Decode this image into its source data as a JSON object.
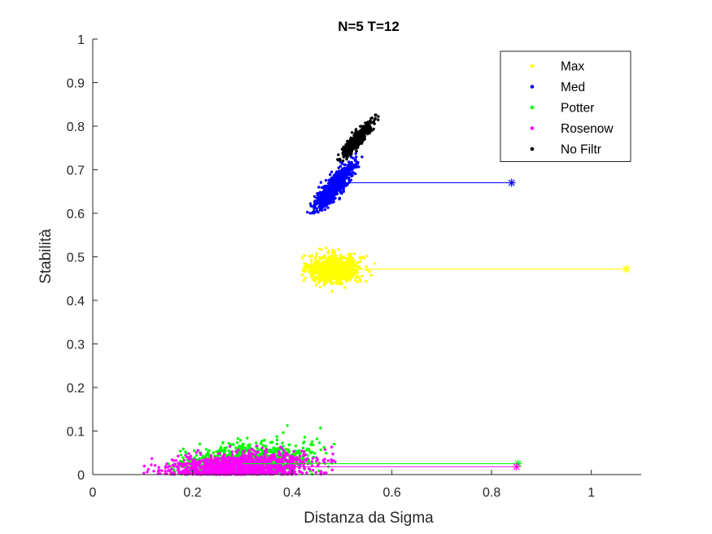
{
  "chart_data": {
    "type": "scatter",
    "title": "N=5    T=12",
    "xlabel": "Distanza da Sigma",
    "ylabel": "Stabilità",
    "xlim": [
      0,
      1.1
    ],
    "ylim": [
      0,
      1
    ],
    "xticks": [
      0,
      0.2,
      0.4,
      0.6,
      0.8,
      1
    ],
    "xtick_labels": [
      "0",
      "0.2",
      "0.4",
      "0.6",
      "0.8",
      "1"
    ],
    "yticks": [
      0,
      0.1,
      0.2,
      0.3,
      0.4,
      0.5,
      0.6,
      0.7,
      0.8,
      0.9,
      1
    ],
    "ytick_labels": [
      "0",
      "0.1",
      "0.2",
      "0.3",
      "0.4",
      "0.5",
      "0.6",
      "0.7",
      "0.8",
      "0.9",
      "1"
    ],
    "grid": false,
    "legend_position": "top-right",
    "series": [
      {
        "name": "Max",
        "color": "#ffff00",
        "cloud": {
          "x_mean": 0.485,
          "x_sd": 0.025,
          "y_mean": 0.472,
          "y_sd": 0.016,
          "x_range": [
            0.42,
            0.61
          ],
          "y_range": [
            0.42,
            0.53
          ],
          "corr": 0.0,
          "count": 900
        },
        "marker": {
          "x": 1.07,
          "y": 0.472
        },
        "line_from_x": 0.5
      },
      {
        "name": "Med",
        "color": "#0000ff",
        "cloud": {
          "x_mean": 0.485,
          "x_sd": 0.018,
          "y_mean": 0.662,
          "y_sd": 0.024,
          "x_range": [
            0.43,
            0.55
          ],
          "y_range": [
            0.6,
            0.74
          ],
          "corr": 0.85,
          "count": 900
        },
        "marker": {
          "x": 0.84,
          "y": 0.67
        },
        "line_from_x": 0.5
      },
      {
        "name": "Potter",
        "color": "#00ff00",
        "cloud": {
          "x_mean": 0.3,
          "x_sd": 0.065,
          "y_mean": 0.025,
          "y_sd": 0.022,
          "x_range": [
            0.15,
            0.49
          ],
          "y_range": [
            0.0,
            0.175
          ],
          "corr": 0.3,
          "count": 1200
        },
        "marker": {
          "x": 0.853,
          "y": 0.025
        },
        "line_from_x": 0.3
      },
      {
        "name": "Rosenow",
        "color": "#ff00ff",
        "cloud": {
          "x_mean": 0.3,
          "x_sd": 0.07,
          "y_mean": 0.018,
          "y_sd": 0.016,
          "x_range": [
            0.09,
            0.49
          ],
          "y_range": [
            0.0,
            0.125
          ],
          "corr": 0.25,
          "count": 1200
        },
        "marker": {
          "x": 0.85,
          "y": 0.018
        },
        "line_from_x": 0.3
      },
      {
        "name": "No Filtr",
        "color": "#000000",
        "cloud": {
          "x_mean": 0.53,
          "x_sd": 0.015,
          "y_mean": 0.77,
          "y_sd": 0.02,
          "x_range": [
            0.49,
            0.575
          ],
          "y_range": [
            0.72,
            0.83
          ],
          "corr": 0.9,
          "count": 500
        },
        "marker": null,
        "line_from_x": null
      }
    ]
  }
}
